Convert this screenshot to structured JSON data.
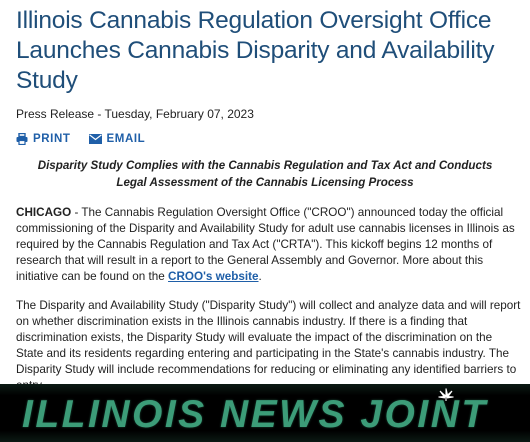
{
  "article": {
    "title": "Illinois Cannabis Regulation Oversight Office Launches Cannabis Disparity and Availability Study",
    "dateline": "Press Release - Tuesday, February 07, 2023",
    "actions": [
      "PRINT",
      "EMAIL"
    ],
    "subtitle": "Disparity Study Complies with the Cannabis Regulation and Tax Act and Conducts Legal Assessment of the Cannabis Licensing Process",
    "paragraphs": [
      {
        "lead": "CHICAGO",
        "text": " - The Cannabis Regulation Oversight Office (\"CROO\") announced today the official commissioning of the Disparity and Availability Study for adult use cannabis licenses in Illinois as required by the Cannabis Regulation and Tax Act (\"CRTA\"). This kickoff begins 12 months of research that will result in a report to the General Assembly and Governor. More about this initiative can be found on the ",
        "link": "CROO's website",
        "tail": "."
      },
      {
        "text": "The Disparity and Availability Study (\"Disparity Study\") will collect and analyze data and will report on whether discrimination exists in the Illinois cannabis industry. If there is a finding that discrimination exists, the Disparity Study will evaluate the impact of the discrimination on the State and its residents regarding entering and participating in the State's cannabis industry. The Disparity Study will include recommendations for reducing or eliminating any identified barriers to entry."
      }
    ]
  },
  "footer": {
    "logo": "ILLINOIS NEWS JOINT"
  }
}
